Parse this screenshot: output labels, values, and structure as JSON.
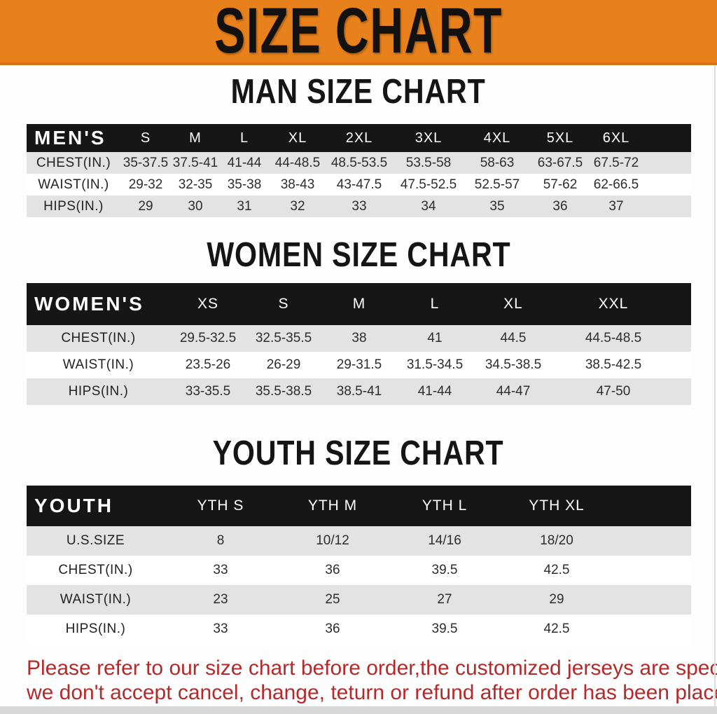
{
  "banner": {
    "title": "SIZE CHART"
  },
  "sections": {
    "men": {
      "title": "MAN SIZE CHART",
      "corner_label": "MEN'S",
      "columns": [
        "S",
        "M",
        "L",
        "XL",
        "2XL",
        "3XL",
        "4XL",
        "5XL",
        "6XL"
      ],
      "rows": [
        {
          "label": "CHEST(IN.)",
          "values": [
            "35-37.5",
            "37.5-41",
            "41-44",
            "44-48.5",
            "48.5-53.5",
            "53.5-58",
            "58-63",
            "63-67.5",
            "67.5-72"
          ]
        },
        {
          "label": "WAIST(IN.)",
          "values": [
            "29-32",
            "32-35",
            "35-38",
            "38-43",
            "43-47.5",
            "47.5-52.5",
            "52.5-57",
            "57-62",
            "62-66.5"
          ]
        },
        {
          "label": "HIPS(IN.)",
          "values": [
            "29",
            "30",
            "31",
            "32",
            "33",
            "34",
            "35",
            "36",
            "37"
          ]
        }
      ]
    },
    "women": {
      "title": "WOMEN SIZE CHART",
      "corner_label": "WOMEN'S",
      "columns": [
        "XS",
        "S",
        "M",
        "L",
        "XL",
        "XXL"
      ],
      "rows": [
        {
          "label": "CHEST(IN.)",
          "values": [
            "29.5-32.5",
            "32.5-35.5",
            "38",
            "41",
            "44.5",
            "44.5-48.5"
          ]
        },
        {
          "label": "WAIST(IN.)",
          "values": [
            "23.5-26",
            "26-29",
            "29-31.5",
            "31.5-34.5",
            "34.5-38.5",
            "38.5-42.5"
          ]
        },
        {
          "label": "HIPS(IN.)",
          "values": [
            "33-35.5",
            "35.5-38.5",
            "38.5-41",
            "41-44",
            "44-47",
            "47-50"
          ]
        }
      ]
    },
    "youth": {
      "title": "YOUTH SIZE CHART",
      "corner_label": "YOUTH",
      "columns": [
        "YTH S",
        "YTH M",
        "YTH L",
        "YTH XL"
      ],
      "rows": [
        {
          "label": "U.S.SIZE",
          "values": [
            "8",
            "10/12",
            "14/16",
            "18/20"
          ]
        },
        {
          "label": "CHEST(IN.)",
          "values": [
            "33",
            "36",
            "39.5",
            "42.5"
          ]
        },
        {
          "label": "WAIST(IN.)",
          "values": [
            "23",
            "25",
            "27",
            "29"
          ]
        },
        {
          "label": "HIPS(IN.)",
          "values": [
            "33",
            "36",
            "39.5",
            "42.5"
          ]
        }
      ]
    }
  },
  "footnote": {
    "line1": "Please refer to our size chart before order,the customized jerseys are special products,",
    "line2": "we don't accept cancel, change, teturn or refund after order has been placed!"
  },
  "colors": {
    "banner_orange": "#E8811B",
    "banner_edge": "#D9730F",
    "header_black": "#161616",
    "row_gray": "#E3E3E3",
    "text_dark": "#2D2D2D",
    "footnote_red": "#B22A2A",
    "strip_gray": "#D7D7D7",
    "edge_line": "#DCDCDC"
  }
}
